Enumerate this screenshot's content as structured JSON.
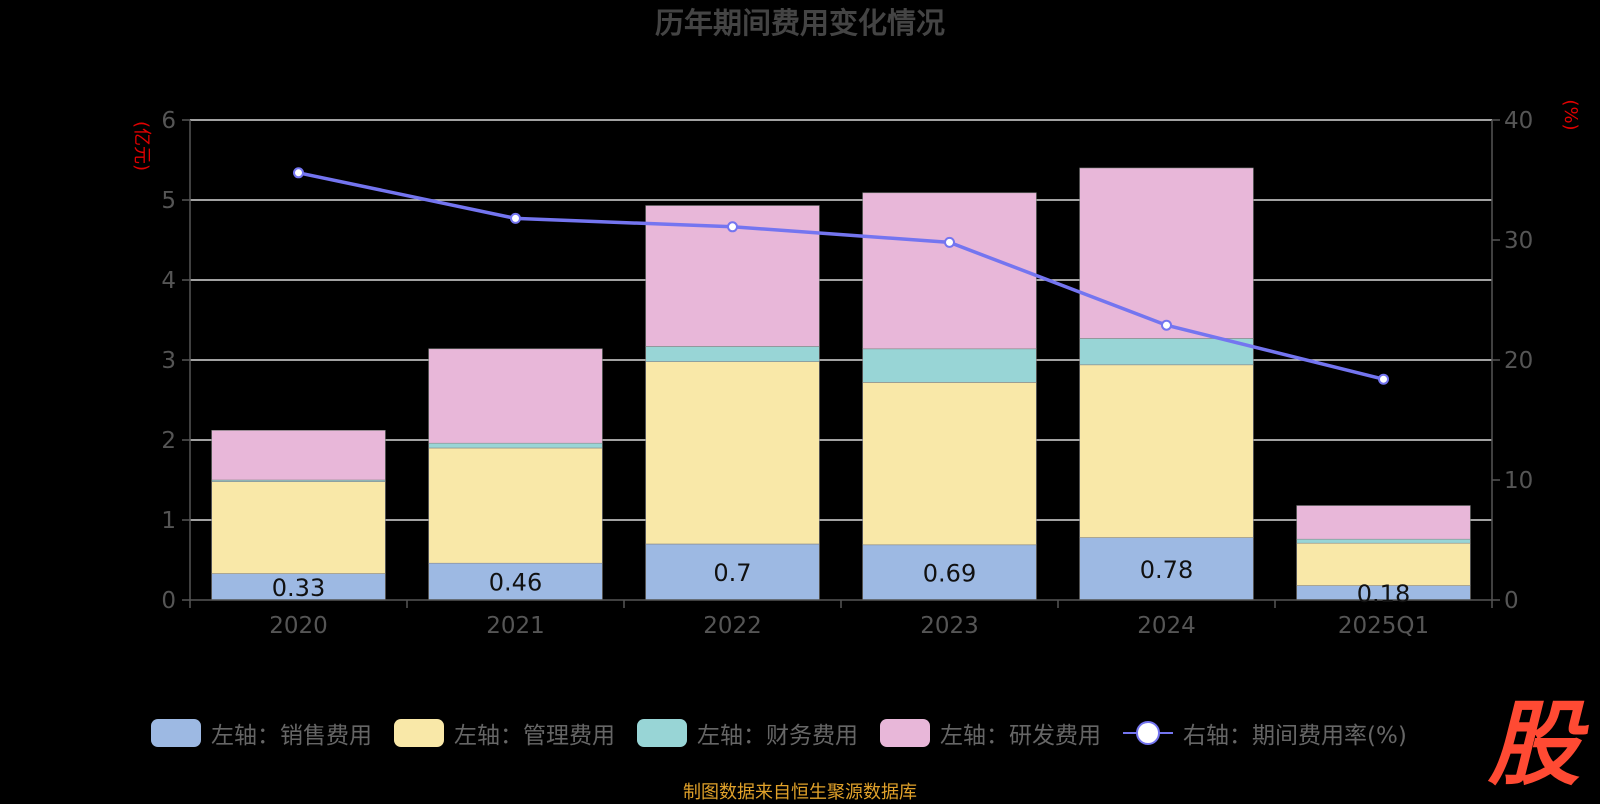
{
  "chart_data": {
    "type": "bar",
    "title": "历年期间费用变化情况",
    "left_axis_unit": "(亿元)",
    "right_axis_unit": "(%)",
    "categories": [
      "2020",
      "2021",
      "2022",
      "2023",
      "2024",
      "2025Q1"
    ],
    "ylim_left": [
      0,
      6
    ],
    "yticks_left": [
      0,
      1,
      2,
      3,
      4,
      5,
      6
    ],
    "ylim_right": [
      0,
      40
    ],
    "yticks_right": [
      0,
      10,
      20,
      30,
      40
    ],
    "grid": true,
    "legend_position": "bottom",
    "stacked": true,
    "series": [
      {
        "name": "左轴：销售费用",
        "kind": "bar",
        "color": "#9db9e3",
        "values": [
          0.33,
          0.46,
          0.7,
          0.69,
          0.78,
          0.18
        ],
        "show_labels": true
      },
      {
        "name": "左轴：管理费用",
        "kind": "bar",
        "color": "#f9e8a8",
        "values": [
          1.15,
          1.44,
          2.28,
          2.03,
          2.16,
          0.53
        ]
      },
      {
        "name": "左轴：财务费用",
        "kind": "bar",
        "color": "#98d5d6",
        "values": [
          0.02,
          0.06,
          0.19,
          0.42,
          0.33,
          0.05
        ]
      },
      {
        "name": "左轴：研发费用",
        "kind": "bar",
        "color": "#e8b7d9",
        "values": [
          0.62,
          1.18,
          1.76,
          1.95,
          2.13,
          0.42
        ]
      },
      {
        "name": "右轴：期间费用率(%)",
        "kind": "line",
        "color": "#7475f0",
        "values": [
          35.6,
          31.8,
          31.1,
          29.8,
          22.9,
          18.4
        ]
      }
    ],
    "label_values": [
      "0.33",
      "0.46",
      "0.7",
      "0.69",
      "0.78",
      "0.18"
    ]
  },
  "source_text": "制图数据来自恒生聚源数据库",
  "logo_text": "股"
}
